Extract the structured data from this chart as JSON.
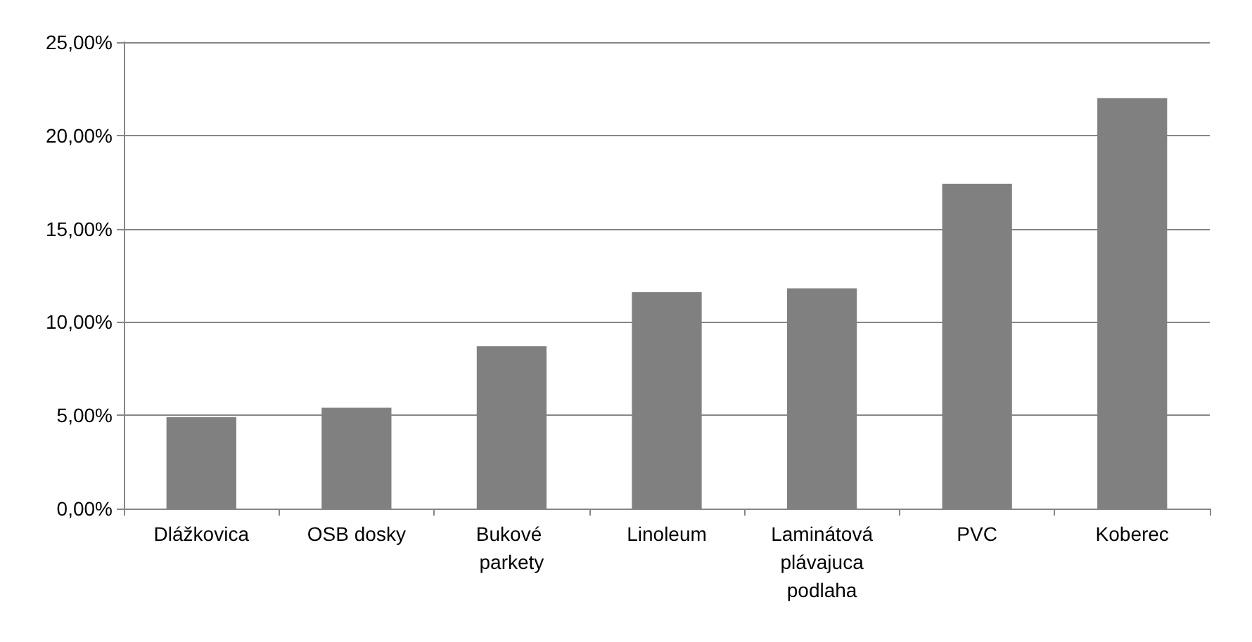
{
  "chart_data": {
    "type": "bar",
    "categories": [
      "Dlážkovica",
      "OSB dosky",
      "Bukové parkety",
      "Linoleum",
      "Laminátová plávajuca podlaha",
      "PVC",
      "Koberec"
    ],
    "values": [
      4.9,
      5.4,
      8.7,
      11.6,
      11.8,
      17.4,
      22.0
    ],
    "color": "#808080",
    "ylim": [
      0,
      25
    ],
    "yticks": [
      {
        "value": 0,
        "label": "0,00%"
      },
      {
        "value": 5,
        "label": "5,00%"
      },
      {
        "value": 10,
        "label": "10,00%"
      },
      {
        "value": 15,
        "label": "15,00%"
      },
      {
        "value": 20,
        "label": "20,00%"
      },
      {
        "value": 25,
        "label": "25,00%"
      }
    ],
    "grid": "y"
  }
}
